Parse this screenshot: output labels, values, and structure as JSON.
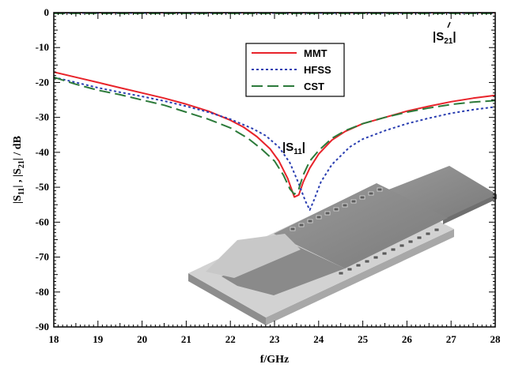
{
  "chart_data": {
    "type": "line",
    "xlabel": "f/GHz",
    "ylabel_parts": {
      "s": "|S",
      "sub11": "11",
      "mid": "| , |S",
      "sub21": "21",
      "end": "|  / dB"
    },
    "xlim": [
      18,
      28
    ],
    "ylim": [
      -90,
      0
    ],
    "xticks": [
      "18",
      "19",
      "20",
      "21",
      "22",
      "23",
      "24",
      "25",
      "26",
      "27",
      "28"
    ],
    "yticks": [
      "0",
      "-10",
      "-20",
      "-30",
      "-40",
      "-50",
      "-60",
      "-70",
      "-80",
      "-90"
    ],
    "grid": false,
    "legend_position": "top-center",
    "annotations": {
      "s11": {
        "main": "|S",
        "sub": "11",
        "end": "|"
      },
      "s21": {
        "main": "|S",
        "sub": "21",
        "end": "|"
      }
    },
    "series": [
      {
        "name": "MMT",
        "color": "#e8232a",
        "dash": "solid",
        "group": "S11",
        "x": [
          18,
          18.5,
          19,
          19.5,
          20,
          20.5,
          21,
          21.5,
          22,
          22.3,
          22.6,
          22.9,
          23.1,
          23.3,
          23.45,
          23.55,
          23.65,
          23.8,
          24,
          24.3,
          24.6,
          25,
          25.5,
          26,
          26.5,
          27,
          27.5,
          28
        ],
        "y": [
          -17,
          -18.5,
          -20,
          -21.5,
          -23,
          -24.5,
          -26.2,
          -28.2,
          -30.8,
          -32.8,
          -35.5,
          -39,
          -42.5,
          -47.5,
          -52.8,
          -52.2,
          -48.5,
          -44.5,
          -40.5,
          -36.5,
          -34,
          -31.8,
          -30,
          -28.2,
          -26.8,
          -25.5,
          -24.5,
          -23.7
        ]
      },
      {
        "name": "HFSS",
        "color": "#2a3eb1",
        "dash": "dotted",
        "group": "S11",
        "x": [
          18,
          18.5,
          19,
          19.5,
          20,
          20.5,
          21,
          21.5,
          22,
          22.5,
          22.8,
          23.1,
          23.35,
          23.55,
          23.7,
          23.8,
          23.9,
          24.05,
          24.3,
          24.7,
          25,
          25.5,
          26,
          26.5,
          27,
          27.5,
          28
        ],
        "y": [
          -18.5,
          -20,
          -21.5,
          -22.8,
          -24,
          -25.3,
          -26.8,
          -28.5,
          -30.5,
          -33.2,
          -35.2,
          -38.5,
          -43,
          -49,
          -54,
          -56.5,
          -53.5,
          -48.5,
          -43.5,
          -38.5,
          -36.2,
          -33.8,
          -31.8,
          -30.2,
          -28.8,
          -27.8,
          -27
        ]
      },
      {
        "name": "CST",
        "color": "#2c7a3a",
        "dash": "dashed",
        "group": "S11",
        "x": [
          18,
          18.5,
          19,
          19.5,
          20,
          20.5,
          21,
          21.5,
          22,
          22.4,
          22.7,
          23,
          23.2,
          23.35,
          23.45,
          23.55,
          23.65,
          23.8,
          24,
          24.3,
          24.6,
          25,
          25.5,
          26,
          26.5,
          27,
          27.5,
          28
        ],
        "y": [
          -18.5,
          -20.5,
          -22.2,
          -23.5,
          -25,
          -26.5,
          -28.5,
          -30.5,
          -33,
          -36,
          -39,
          -42.5,
          -46.5,
          -50.5,
          -52,
          -50.5,
          -46.5,
          -42.5,
          -39.5,
          -36,
          -33.8,
          -31.8,
          -30,
          -28.5,
          -27.3,
          -26.3,
          -25.6,
          -25.2
        ]
      },
      {
        "color": "#e8232a",
        "dash": "solid",
        "group": "S21",
        "x": [
          18,
          28
        ],
        "y": [
          0,
          0
        ]
      },
      {
        "color": "#2a3eb1",
        "dash": "dotted",
        "group": "S21",
        "x": [
          18,
          28
        ],
        "y": [
          -0.1,
          -0.1
        ]
      },
      {
        "color": "#2c7a3a",
        "dash": "dashed",
        "group": "S21",
        "x": [
          18,
          28
        ],
        "y": [
          -0.2,
          -0.2
        ]
      }
    ]
  }
}
